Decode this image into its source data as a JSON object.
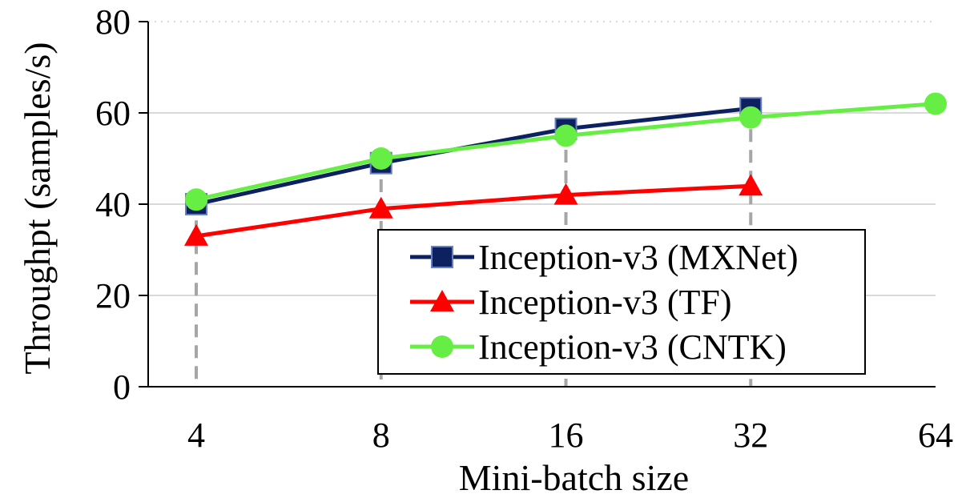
{
  "chart_data": {
    "type": "line",
    "xlabel": "Mini-batch size",
    "ylabel": "Throughpt (samples/s)",
    "x_scale": "log2",
    "x_ticks": [
      4,
      8,
      16,
      32,
      64
    ],
    "x_tick_labels": [
      "4",
      "8",
      "16",
      "32",
      "64"
    ],
    "xlim": [
      4,
      64
    ],
    "ylim": [
      0,
      80
    ],
    "y_ticks": [
      0,
      20,
      40,
      60,
      80
    ],
    "y_tick_labels": [
      "0",
      "20",
      "40",
      "60",
      "80"
    ],
    "grid": true,
    "grid_top_line_style": "dotted",
    "drop_lines_at": [
      4,
      8,
      16,
      32
    ],
    "legend_position": "lower-right",
    "series": [
      {
        "name": "Inception-v3 (MXNet)",
        "color": "#0d2060",
        "marker": "square",
        "x": [
          4,
          8,
          16,
          32
        ],
        "y": [
          40,
          49,
          56.5,
          61
        ]
      },
      {
        "name": "Inception-v3 (TF)",
        "color": "#ff0000",
        "marker": "triangle",
        "x": [
          4,
          8,
          16,
          32
        ],
        "y": [
          33,
          39,
          42,
          44
        ]
      },
      {
        "name": "Inception-v3 (CNTK)",
        "color": "#66ee44",
        "marker": "circle",
        "x": [
          4,
          8,
          16,
          32,
          64
        ],
        "y": [
          41,
          50,
          55,
          59,
          62
        ]
      }
    ]
  }
}
